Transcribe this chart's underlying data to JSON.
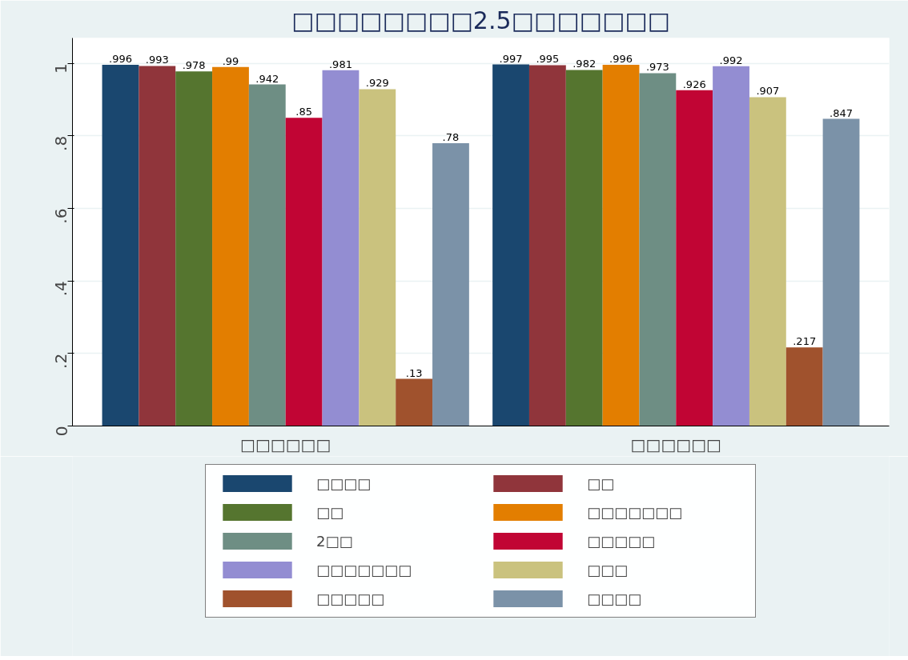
{
  "chart_data": {
    "type": "bar",
    "title": "□□□□□□□□2.5□□□□□□□",
    "categories": [
      "□□□□□□",
      "□□□□□□"
    ],
    "series": [
      {
        "name": "□□□□",
        "color": "#1a476f",
        "values": [
          0.996,
          0.997
        ],
        "value_labels": [
          ".996",
          ".997"
        ]
      },
      {
        "name": "□□",
        "color": "#90353b",
        "values": [
          0.993,
          0.995
        ],
        "value_labels": [
          ".993",
          ".995"
        ]
      },
      {
        "name": "□□",
        "color": "#55752f",
        "values": [
          0.978,
          0.982
        ],
        "value_labels": [
          ".978",
          ".982"
        ]
      },
      {
        "name": "□□□□□□□",
        "color": "#e37e00",
        "values": [
          0.99,
          0.996
        ],
        "value_labels": [
          ".99",
          ".996"
        ]
      },
      {
        "name": "2□□",
        "color": "#6e8e84",
        "values": [
          0.942,
          0.973
        ],
        "value_labels": [
          ".942",
          ".973"
        ]
      },
      {
        "name": "□□□□□",
        "color": "#c10534",
        "values": [
          0.85,
          0.926
        ],
        "value_labels": [
          ".85",
          ".926"
        ]
      },
      {
        "name": "□□□□□□□",
        "color": "#938dd2",
        "values": [
          0.981,
          0.992
        ],
        "value_labels": [
          ".981",
          ".992"
        ]
      },
      {
        "name": "□□□",
        "color": "#cac27e",
        "values": [
          0.929,
          0.907
        ],
        "value_labels": [
          ".929",
          ".907"
        ]
      },
      {
        "name": "□□□□□",
        "color": "#a0522d",
        "values": [
          0.13,
          0.217
        ],
        "value_labels": [
          ".13",
          ".217"
        ]
      },
      {
        "name": "□□□□",
        "color": "#7b92a8",
        "values": [
          0.78,
          0.847
        ],
        "value_labels": [
          ".78",
          ".847"
        ]
      }
    ],
    "ylim": [
      0,
      1.07
    ],
    "yticks": [
      0,
      {
        "value": 0.2,
        "label": ".2"
      },
      {
        "value": 0.4,
        "label": ".4"
      },
      {
        "value": 0.6,
        "label": ".6"
      },
      {
        "value": 0.8,
        "label": ".8"
      },
      1
    ],
    "grid": "y",
    "legend": "bottom"
  }
}
